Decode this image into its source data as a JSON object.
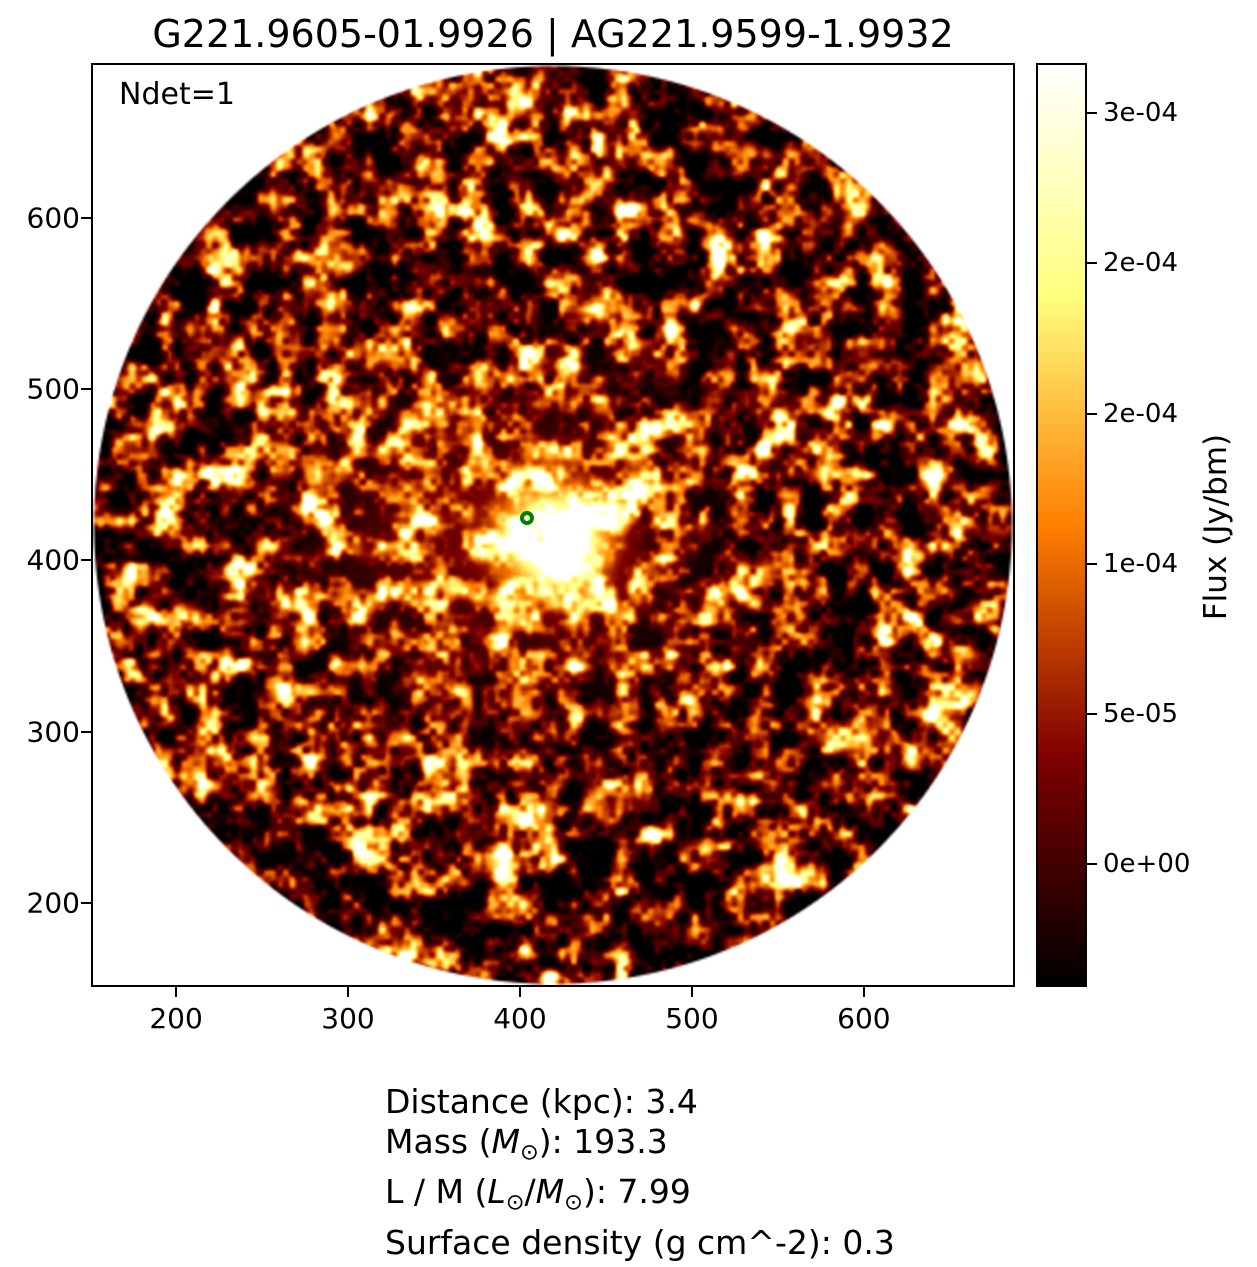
{
  "title": "G221.9605-01.9926 | AG221.9599-1.9932",
  "chart_data": {
    "type": "heatmap",
    "title": "G221.9605-01.9926 | AG221.9599-1.9932",
    "annotation": "Ndet=1",
    "xlabel": "",
    "ylabel": "",
    "x_ticks": [
      200,
      300,
      400,
      500,
      600
    ],
    "y_ticks": [
      200,
      300,
      400,
      500,
      600
    ],
    "xlim": [
      151.7,
      686.7
    ],
    "ylim": [
      152.1,
      689.3
    ],
    "grid": false,
    "colormap": "afmhot",
    "field_shape": "circle-inscribed-in-axes",
    "outside_field_color": "#ffffff",
    "colorbar": {
      "label": "Flux (Jy/bm)",
      "vmin": -4.03e-05,
      "vmax": 0.0002661,
      "ticks": [
        {
          "value": 0.00025,
          "label": "3e-04"
        },
        {
          "value": 0.0002,
          "label": "2e-04"
        },
        {
          "value": 0.00015,
          "label": "2e-04"
        },
        {
          "value": 0.0001,
          "label": "1e-04"
        },
        {
          "value": 5e-05,
          "label": "5e-05"
        },
        {
          "value": 0.0,
          "label": "0e+00"
        }
      ]
    },
    "source_marker": {
      "x": 404,
      "y": 425,
      "color": "#008000",
      "shape": "open-circle"
    },
    "bright_spot": {
      "x": 420,
      "y": 412
    },
    "noise_seed": 20240719
  },
  "stats": {
    "lines": [
      {
        "segments": [
          {
            "t": "Distance (kpc): 3.4"
          }
        ]
      },
      {
        "segments": [
          {
            "t": "Mass ("
          },
          {
            "t": "M",
            "style": "italic"
          },
          {
            "t": "⊙",
            "style": "sub"
          },
          {
            "t": "): 193.3"
          }
        ]
      },
      {
        "segments": [
          {
            "t": "L / M ("
          },
          {
            "t": "L",
            "style": "italic"
          },
          {
            "t": "⊙",
            "style": "sub"
          },
          {
            "t": "/"
          },
          {
            "t": "M",
            "style": "italic"
          },
          {
            "t": "⊙",
            "style": "sub"
          },
          {
            "t": "): 7.99"
          }
        ]
      },
      {
        "segments": [
          {
            "t": "Surface density (g cm^-2): 0.3"
          }
        ]
      }
    ]
  }
}
